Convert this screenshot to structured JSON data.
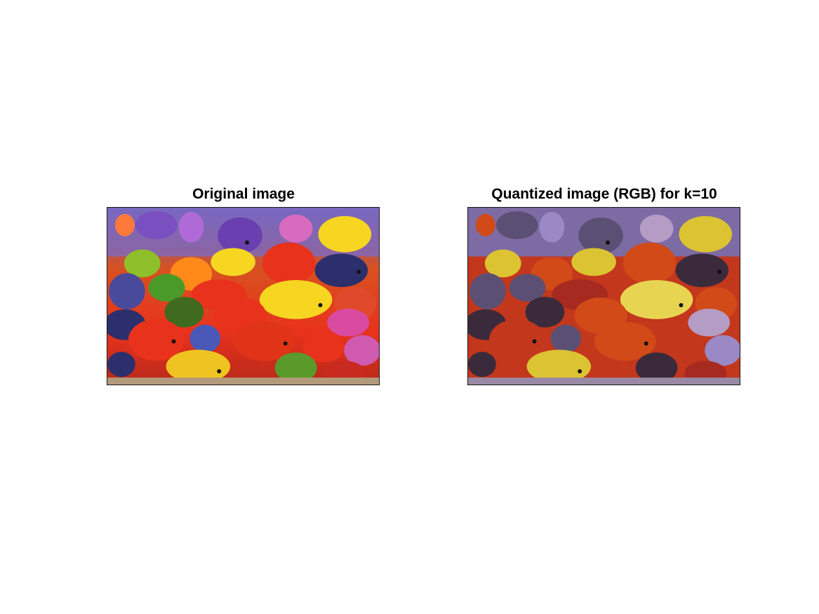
{
  "figure": {
    "left_panel": {
      "title": "Original image"
    },
    "right_panel": {
      "title": "Quantized image (RGB) for k=10"
    }
  },
  "colors": {
    "background": "#ffffff",
    "axes_border": "#1a1a1a",
    "original_palette": [
      "#e8321c",
      "#f6d620",
      "#6a3fb0",
      "#2c2f6b",
      "#d94aa0",
      "#4a9a2a",
      "#ff8a1a",
      "#9aa0d8"
    ],
    "quantized_palette": [
      "#d14a17",
      "#c3371c",
      "#dcc332",
      "#7d6ba4",
      "#9a89c4",
      "#3a2a3c",
      "#5c4f74",
      "#b49cc4",
      "#a62a20",
      "#e7d552"
    ]
  }
}
